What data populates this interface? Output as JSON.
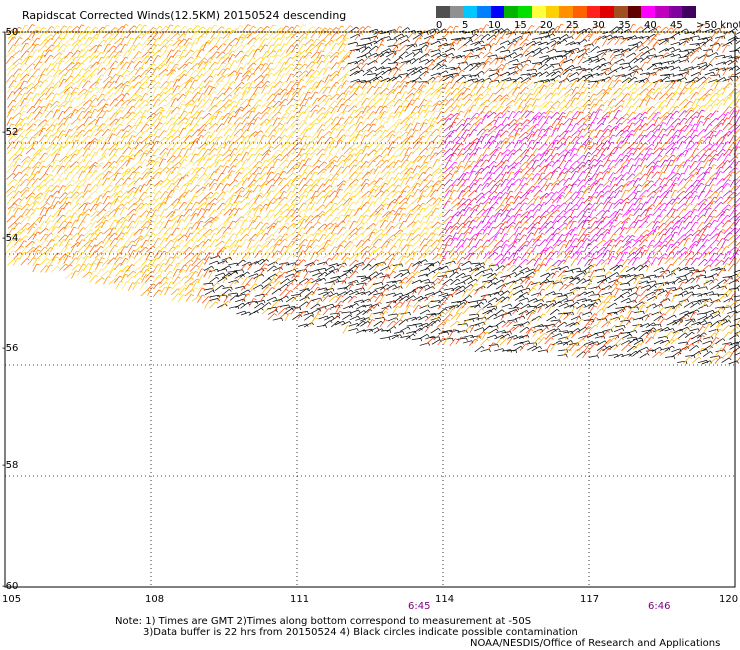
{
  "title": "Rapidscat Corrected Winds(12.5KM) 20150524 descending",
  "colorbar": {
    "colors": [
      "#505050",
      "#909090",
      "#00c8ff",
      "#0080ff",
      "#0000ff",
      "#00b400",
      "#00e000",
      "#ffff40",
      "#ffd000",
      "#ff9000",
      "#ff6000",
      "#ff2020",
      "#e00000",
      "#a05020",
      "#600000",
      "#ff00ff",
      "#c000c0",
      "#8000a0",
      "#400060"
    ],
    "labels": [
      "0",
      "5",
      "10",
      "15",
      "20",
      "25",
      "30",
      "35",
      "40",
      "45",
      ">50 knots"
    ]
  },
  "lat_labels": [
    "-50",
    "-52",
    "-54",
    "-56",
    "-58",
    "-60"
  ],
  "lon_labels": [
    "105",
    "108",
    "111",
    "114",
    "117",
    "120"
  ],
  "time_labels": [
    "6:45",
    "6:46"
  ],
  "notes": [
    "Note: 1) Times are GMT 2)Times along bottom correspond to measurement at -50S",
    "3)Data buffer is 22 hrs from 20150524 4) Black circles indicate possible contamination"
  ],
  "credit": "NOAA/NESDIS/Office of Research and Applications",
  "map_data": {
    "lon_range": [
      105,
      120
    ],
    "lat_range": [
      -60,
      -50
    ],
    "swath_edge": [
      [
        105,
        -54.2
      ],
      [
        108,
        -54.8
      ],
      [
        111,
        -55.3
      ],
      [
        114,
        -55.7
      ],
      [
        117,
        -55.9
      ],
      [
        120,
        -56.0
      ]
    ],
    "wind_speed_regions": [
      {
        "lon": [
          105,
          113
        ],
        "lat": [
          -54,
          -50
        ],
        "knots": "20-25"
      },
      {
        "lon": [
          114,
          120
        ],
        "lat": [
          -54,
          -51.5
        ],
        "knots": "35-50"
      },
      {
        "lon": [
          110,
          120
        ],
        "lat": [
          -55.5,
          -54
        ],
        "knots": "0-5"
      },
      {
        "lon": [
          112,
          120
        ],
        "lat": [
          -51,
          -50
        ],
        "knots": "0-5"
      }
    ]
  }
}
